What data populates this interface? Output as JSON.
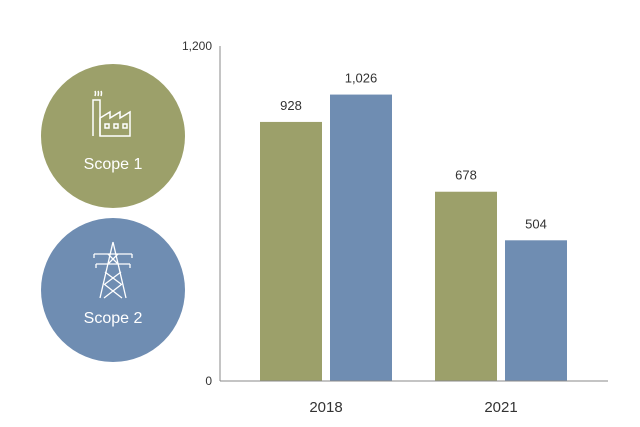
{
  "legend": {
    "items": [
      {
        "label": "Scope 1",
        "color": "#9ca06a",
        "icon": "factory-icon"
      },
      {
        "label": "Scope 2",
        "color": "#6f8db2",
        "icon": "power-tower-icon"
      }
    ]
  },
  "chart_data": {
    "type": "bar",
    "categories": [
      "2018",
      "2021"
    ],
    "series": [
      {
        "name": "Scope 1",
        "color": "#9ca06a",
        "values": [
          928,
          678
        ]
      },
      {
        "name": "Scope 2",
        "color": "#6f8db2",
        "values": [
          1026,
          504
        ]
      }
    ],
    "value_labels": [
      [
        "928",
        "1,026"
      ],
      [
        "678",
        "504"
      ]
    ],
    "yticks": [
      0,
      1200
    ],
    "ytick_labels": [
      "0",
      "1,200"
    ],
    "ylim": [
      0,
      1200
    ],
    "grid": false,
    "legend_position": "left"
  }
}
